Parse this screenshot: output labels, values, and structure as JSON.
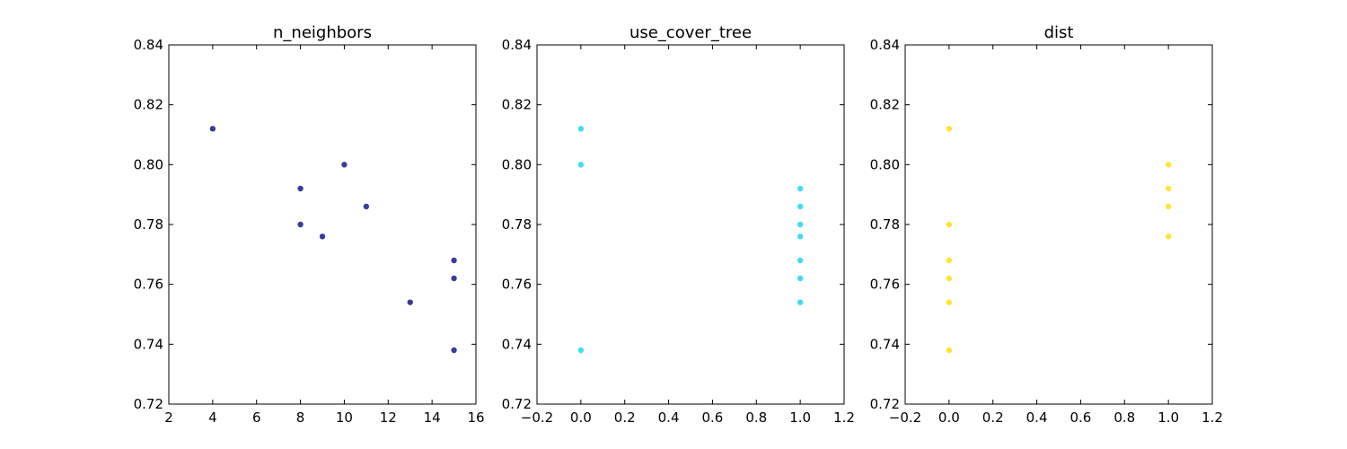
{
  "chart_data": [
    {
      "type": "scatter",
      "title": "n_neighbors",
      "xlabel": "",
      "ylabel": "",
      "xlim": [
        2,
        16
      ],
      "ylim": [
        0.72,
        0.84
      ],
      "xticks": [
        "2",
        "4",
        "6",
        "8",
        "10",
        "12",
        "14",
        "16"
      ],
      "yticks": [
        "0.72",
        "0.74",
        "0.76",
        "0.78",
        "0.80",
        "0.82",
        "0.84"
      ],
      "color": "#3b3b9c",
      "grid": false,
      "points": [
        {
          "x": 4,
          "y": 0.812
        },
        {
          "x": 8,
          "y": 0.792
        },
        {
          "x": 8,
          "y": 0.78
        },
        {
          "x": 9,
          "y": 0.776
        },
        {
          "x": 10,
          "y": 0.8
        },
        {
          "x": 11,
          "y": 0.786
        },
        {
          "x": 13,
          "y": 0.754
        },
        {
          "x": 15,
          "y": 0.768
        },
        {
          "x": 15,
          "y": 0.762
        },
        {
          "x": 15,
          "y": 0.738
        }
      ]
    },
    {
      "type": "scatter",
      "title": "use_cover_tree",
      "xlabel": "",
      "ylabel": "",
      "xlim": [
        -0.2,
        1.2
      ],
      "ylim": [
        0.72,
        0.84
      ],
      "xticks": [
        "−0.2",
        "0.0",
        "0.2",
        "0.4",
        "0.6",
        "0.8",
        "1.0",
        "1.2"
      ],
      "yticks": [
        "0.72",
        "0.74",
        "0.76",
        "0.78",
        "0.80",
        "0.82",
        "0.84"
      ],
      "color": "#3fdcf5",
      "grid": false,
      "points": [
        {
          "x": 0,
          "y": 0.812
        },
        {
          "x": 0,
          "y": 0.8
        },
        {
          "x": 0,
          "y": 0.738
        },
        {
          "x": 1,
          "y": 0.792
        },
        {
          "x": 1,
          "y": 0.786
        },
        {
          "x": 1,
          "y": 0.78
        },
        {
          "x": 1,
          "y": 0.776
        },
        {
          "x": 1,
          "y": 0.768
        },
        {
          "x": 1,
          "y": 0.762
        },
        {
          "x": 1,
          "y": 0.754
        }
      ]
    },
    {
      "type": "scatter",
      "title": "dist",
      "xlabel": "",
      "ylabel": "",
      "xlim": [
        -0.2,
        1.2
      ],
      "ylim": [
        0.72,
        0.84
      ],
      "xticks": [
        "−0.2",
        "0.0",
        "0.2",
        "0.4",
        "0.6",
        "0.8",
        "1.0",
        "1.2"
      ],
      "yticks": [
        "0.72",
        "0.74",
        "0.76",
        "0.78",
        "0.80",
        "0.82",
        "0.84"
      ],
      "color": "#ffe433",
      "grid": false,
      "points": [
        {
          "x": 0,
          "y": 0.812
        },
        {
          "x": 0,
          "y": 0.78
        },
        {
          "x": 0,
          "y": 0.768
        },
        {
          "x": 0,
          "y": 0.762
        },
        {
          "x": 0,
          "y": 0.754
        },
        {
          "x": 0,
          "y": 0.738
        },
        {
          "x": 1,
          "y": 0.8
        },
        {
          "x": 1,
          "y": 0.792
        },
        {
          "x": 1,
          "y": 0.786
        },
        {
          "x": 1,
          "y": 0.776
        }
      ]
    }
  ]
}
